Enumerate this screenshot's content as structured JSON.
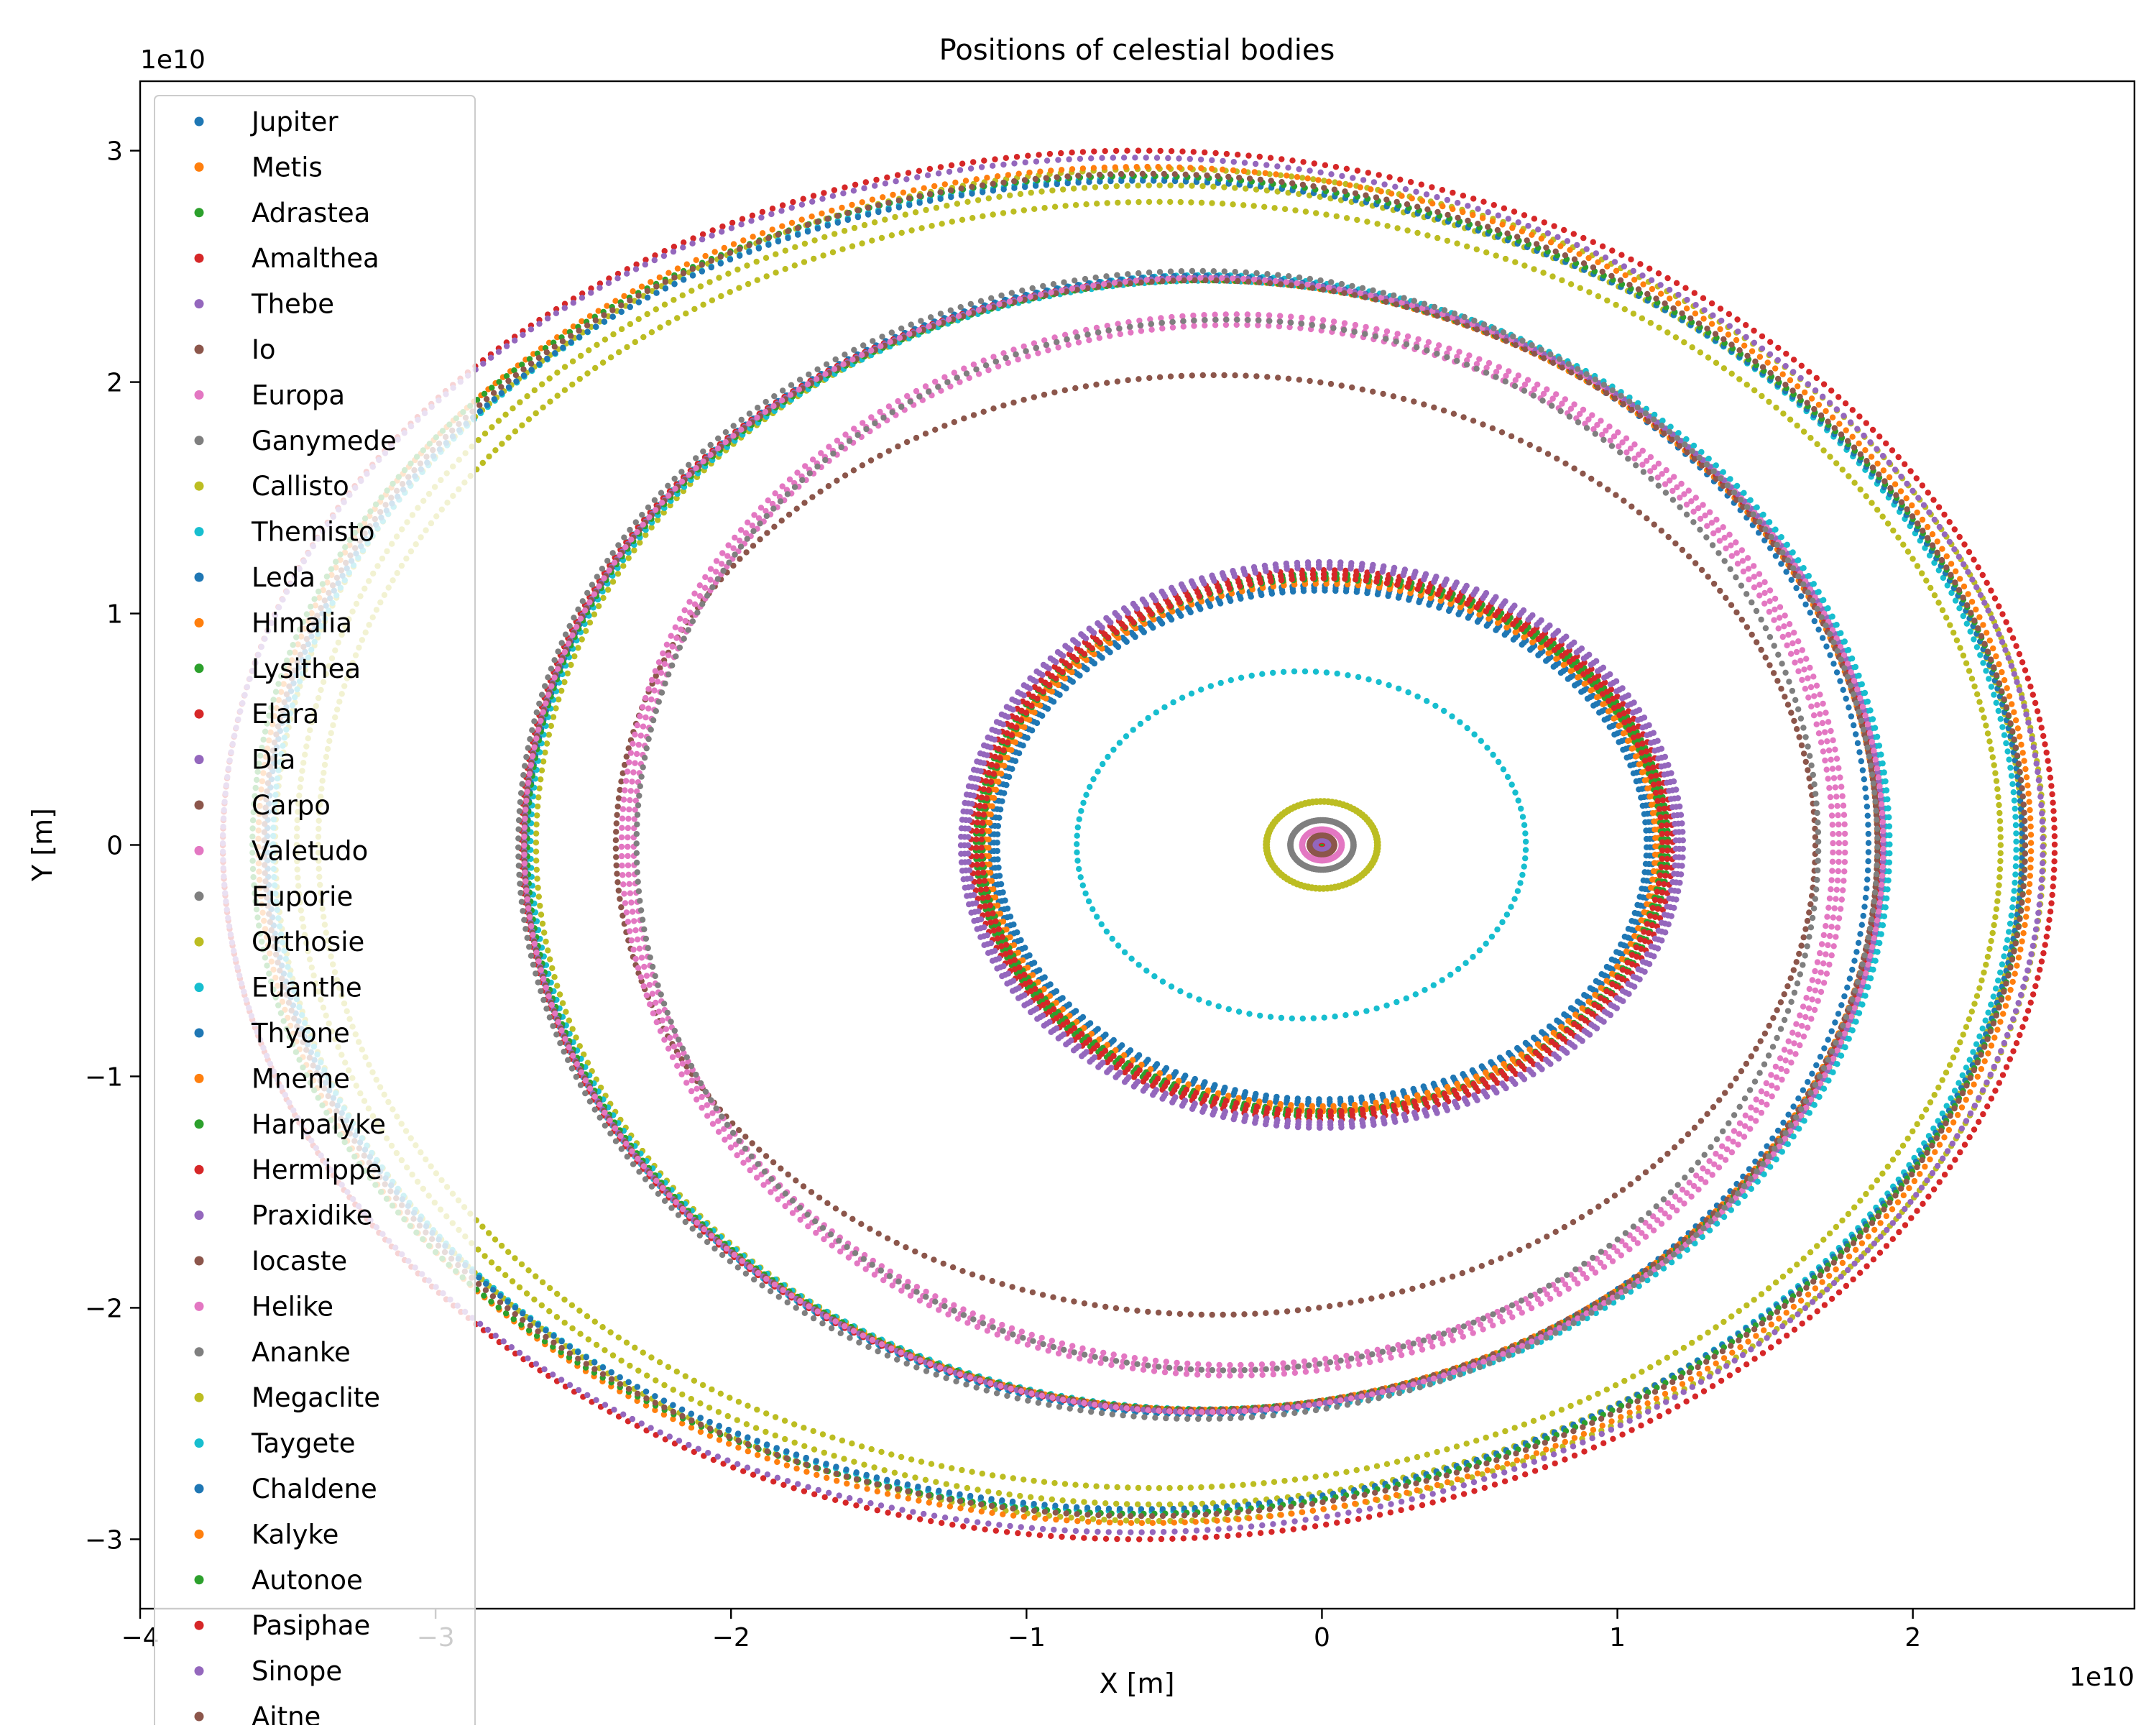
{
  "chart_data": {
    "type": "scatter",
    "title": "Positions of celestial bodies",
    "xlabel": "X [m]",
    "ylabel": "Y [m]",
    "x_offset_text": "1e10",
    "y_offset_text": "1e10",
    "xlim": [
      -4.0,
      2.75
    ],
    "ylim": [
      -3.3,
      3.3
    ],
    "x_ticks": [
      {
        "value": -4,
        "label": "−4"
      },
      {
        "value": -3,
        "label": "−3"
      },
      {
        "value": -2,
        "label": "−2"
      },
      {
        "value": -1,
        "label": "−1"
      },
      {
        "value": 0,
        "label": "0"
      },
      {
        "value": 1,
        "label": "1"
      },
      {
        "value": 2,
        "label": "2"
      }
    ],
    "y_ticks": [
      {
        "value": -3,
        "label": "−3"
      },
      {
        "value": -2,
        "label": "−2"
      },
      {
        "value": -1,
        "label": "−1"
      },
      {
        "value": 0,
        "label": "0"
      },
      {
        "value": 1,
        "label": "1"
      },
      {
        "value": 2,
        "label": "2"
      },
      {
        "value": 3,
        "label": "3"
      }
    ],
    "grid": false,
    "legend_placement": "upper-left",
    "series": [
      {
        "name": "Jupiter",
        "color": "#1f77b4",
        "cx": 0.0,
        "cy": 0.0,
        "rx": 0.004,
        "ry": 0.004,
        "radial_spread": 0.0
      },
      {
        "name": "Metis",
        "color": "#ff7f0e",
        "cx": 0.0,
        "cy": 0.0,
        "rx": 0.013,
        "ry": 0.013,
        "radial_spread": 0.0
      },
      {
        "name": "Adrastea",
        "color": "#2ca02c",
        "cx": 0.0,
        "cy": 0.0,
        "rx": 0.013,
        "ry": 0.013,
        "radial_spread": 0.0
      },
      {
        "name": "Amalthea",
        "color": "#d62728",
        "cx": 0.0,
        "cy": 0.0,
        "rx": 0.018,
        "ry": 0.018,
        "radial_spread": 0.0
      },
      {
        "name": "Thebe",
        "color": "#9467bd",
        "cx": 0.0,
        "cy": 0.0,
        "rx": 0.022,
        "ry": 0.022,
        "radial_spread": 0.0
      },
      {
        "name": "Io",
        "color": "#8c564b",
        "cx": 0.0,
        "cy": 0.0,
        "rx": 0.042,
        "ry": 0.042,
        "radial_spread": 0.0
      },
      {
        "name": "Europa",
        "color": "#e377c2",
        "cx": 0.0,
        "cy": 0.0,
        "rx": 0.067,
        "ry": 0.067,
        "radial_spread": 0.005
      },
      {
        "name": "Ganymede",
        "color": "#7f7f7f",
        "cx": 0.0,
        "cy": 0.0,
        "rx": 0.107,
        "ry": 0.107,
        "radial_spread": 0.01
      },
      {
        "name": "Callisto",
        "color": "#bcbd22",
        "cx": 0.0,
        "cy": 0.0,
        "rx": 0.188,
        "ry": 0.188,
        "radial_spread": 0.02
      },
      {
        "name": "Themisto",
        "color": "#17becf",
        "cx": -0.07,
        "cy": 0.0,
        "rx": 0.76,
        "ry": 0.75,
        "radial_spread": 0.0
      },
      {
        "name": "Leda",
        "color": "#1f77b4",
        "cx": 0.0,
        "cy": 0.0,
        "rx": 1.11,
        "ry": 1.11,
        "radial_spread": 0.02
      },
      {
        "name": "Himalia",
        "color": "#ff7f0e",
        "cx": 0.0,
        "cy": 0.0,
        "rx": 1.14,
        "ry": 1.14,
        "radial_spread": 0.02
      },
      {
        "name": "Lysithea",
        "color": "#2ca02c",
        "cx": 0.0,
        "cy": 0.0,
        "rx": 1.16,
        "ry": 1.16,
        "radial_spread": 0.02
      },
      {
        "name": "Elara",
        "color": "#d62728",
        "cx": 0.0,
        "cy": 0.0,
        "rx": 1.17,
        "ry": 1.17,
        "radial_spread": 0.03
      },
      {
        "name": "Dia",
        "color": "#9467bd",
        "cx": 0.0,
        "cy": 0.0,
        "rx": 1.21,
        "ry": 1.21,
        "radial_spread": 0.02
      },
      {
        "name": "Carpo",
        "color": "#8c564b",
        "cx": -0.36,
        "cy": 0.0,
        "rx": 2.03,
        "ry": 2.03,
        "radial_spread": 0.0
      },
      {
        "name": "Valetudo",
        "color": "#e377c2",
        "cx": -0.3,
        "cy": 0.0,
        "rx": 2.05,
        "ry": 2.27,
        "radial_spread": 0.02
      },
      {
        "name": "Euporie",
        "color": "#7f7f7f",
        "cx": -0.32,
        "cy": 0.0,
        "rx": 2.0,
        "ry": 2.27,
        "radial_spread": 0.0
      },
      {
        "name": "Orthosie",
        "color": "#bcbd22",
        "cx": -0.38,
        "cy": 0.0,
        "rx": 2.28,
        "ry": 2.45,
        "radial_spread": 0.0
      },
      {
        "name": "Euanthe",
        "color": "#17becf",
        "cx": -0.39,
        "cy": 0.0,
        "rx": 2.3,
        "ry": 2.45,
        "radial_spread": 0.01
      },
      {
        "name": "Thyone",
        "color": "#1f77b4",
        "cx": -0.42,
        "cy": 0.0,
        "rx": 2.27,
        "ry": 2.46,
        "radial_spread": 0.0
      },
      {
        "name": "Mneme",
        "color": "#ff7f0e",
        "cx": -0.41,
        "cy": 0.0,
        "rx": 2.29,
        "ry": 2.44,
        "radial_spread": 0.0
      },
      {
        "name": "Harpalyke",
        "color": "#2ca02c",
        "cx": -0.4,
        "cy": 0.0,
        "rx": 2.29,
        "ry": 2.44,
        "radial_spread": 0.0
      },
      {
        "name": "Hermippe",
        "color": "#d62728",
        "cx": -0.41,
        "cy": 0.0,
        "rx": 2.3,
        "ry": 2.45,
        "radial_spread": 0.0
      },
      {
        "name": "Praxidike",
        "color": "#9467bd",
        "cx": -0.4,
        "cy": 0.0,
        "rx": 2.3,
        "ry": 2.45,
        "radial_spread": 0.0
      },
      {
        "name": "Iocaste",
        "color": "#8c564b",
        "cx": -0.41,
        "cy": 0.0,
        "rx": 2.29,
        "ry": 2.44,
        "radial_spread": 0.0
      },
      {
        "name": "Helike",
        "color": "#e377c2",
        "cx": -0.4,
        "cy": 0.0,
        "rx": 2.3,
        "ry": 2.45,
        "radial_spread": 0.0
      },
      {
        "name": "Ananke",
        "color": "#7f7f7f",
        "cx": -0.42,
        "cy": 0.0,
        "rx": 2.3,
        "ry": 2.48,
        "radial_spread": 0.0
      },
      {
        "name": "Megaclite",
        "color": "#bcbd22",
        "cx": -0.55,
        "cy": 0.0,
        "rx": 2.92,
        "ry": 2.85,
        "radial_spread": 0.05
      },
      {
        "name": "Taygete",
        "color": "#17becf",
        "cx": -0.6,
        "cy": 0.0,
        "rx": 2.95,
        "ry": 2.88,
        "radial_spread": 0.0
      },
      {
        "name": "Chaldene",
        "color": "#1f77b4",
        "cx": -0.6,
        "cy": 0.0,
        "rx": 2.97,
        "ry": 2.87,
        "radial_spread": 0.0
      },
      {
        "name": "Kalyke",
        "color": "#ff7f0e",
        "cx": -0.6,
        "cy": 0.0,
        "rx": 3.0,
        "ry": 2.93,
        "radial_spread": 0.0
      },
      {
        "name": "Autonoe",
        "color": "#2ca02c",
        "cx": -0.62,
        "cy": 0.0,
        "rx": 3.0,
        "ry": 2.89,
        "radial_spread": 0.0
      },
      {
        "name": "Pasiphae",
        "color": "#d62728",
        "cx": -0.62,
        "cy": 0.0,
        "rx": 3.1,
        "ry": 3.0,
        "radial_spread": 0.0
      },
      {
        "name": "Sinope",
        "color": "#9467bd",
        "cx": -0.64,
        "cy": 0.0,
        "rx": 3.08,
        "ry": 2.97,
        "radial_spread": 0.0
      },
      {
        "name": "Aitne",
        "color": "#8c564b",
        "cx": -0.6,
        "cy": 0.0,
        "rx": 2.98,
        "ry": 2.9,
        "radial_spread": 0.0
      }
    ]
  }
}
